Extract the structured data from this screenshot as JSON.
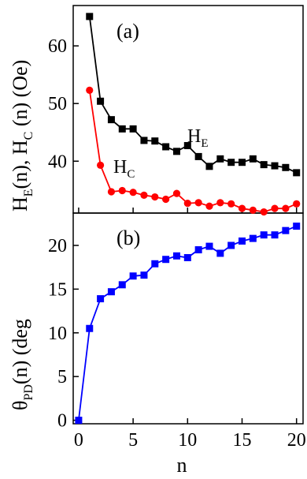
{
  "chart_data": [
    {
      "panel": "(a)",
      "type": "line",
      "ylabel_parts": [
        "H",
        "E",
        "(n), H",
        "C",
        " (n) (Oe)"
      ],
      "ylim": [
        31,
        67
      ],
      "yticks": [
        40,
        50,
        60
      ],
      "series": [
        {
          "label_main": "H",
          "label_sub": "E",
          "color": "#000000",
          "marker": "square",
          "x": [
            1,
            2,
            3,
            4,
            5,
            6,
            7,
            8,
            9,
            10,
            11,
            12,
            13,
            14,
            15,
            16,
            17,
            18,
            19,
            20
          ],
          "y": [
            65.1,
            50.4,
            47.2,
            45.6,
            45.6,
            43.6,
            43.5,
            42.5,
            41.7,
            42.7,
            40.8,
            39.1,
            40.4,
            39.8,
            39.8,
            40.4,
            39.4,
            39.2,
            38.9,
            38.0
          ]
        },
        {
          "label_main": "H",
          "label_sub": "C",
          "color": "#ff0000",
          "marker": "circle",
          "x": [
            1,
            2,
            3,
            4,
            5,
            6,
            7,
            8,
            9,
            10,
            11,
            12,
            13,
            14,
            15,
            16,
            17,
            18,
            19,
            20
          ],
          "y": [
            52.3,
            39.3,
            34.7,
            34.9,
            34.6,
            34.1,
            33.8,
            33.4,
            34.4,
            32.7,
            32.8,
            32.2,
            32.8,
            32.6,
            31.8,
            31.5,
            31.2,
            31.8,
            31.8,
            32.6
          ]
        }
      ]
    },
    {
      "panel": "(b)",
      "type": "line",
      "ylabel_parts": [
        "θ",
        "PD",
        "(n) (deg"
      ],
      "xlabel": "n",
      "xlim": [
        -0.5,
        20.6
      ],
      "ylim": [
        -0.4,
        23.7
      ],
      "yticks": [
        0,
        5,
        10,
        15,
        20
      ],
      "xticks": [
        0,
        5,
        10,
        15,
        20
      ],
      "series": [
        {
          "color": "#0000ff",
          "marker": "square",
          "x": [
            0,
            1,
            2,
            3,
            4,
            5,
            6,
            7,
            8,
            9,
            10,
            11,
            12,
            13,
            14,
            15,
            16,
            17,
            18,
            19,
            20
          ],
          "y": [
            0,
            10.5,
            13.9,
            14.7,
            15.5,
            16.5,
            16.6,
            17.9,
            18.4,
            18.8,
            18.6,
            19.5,
            19.9,
            19.1,
            20.0,
            20.5,
            20.8,
            21.2,
            21.2,
            21.7,
            22.2
          ]
        }
      ]
    }
  ]
}
